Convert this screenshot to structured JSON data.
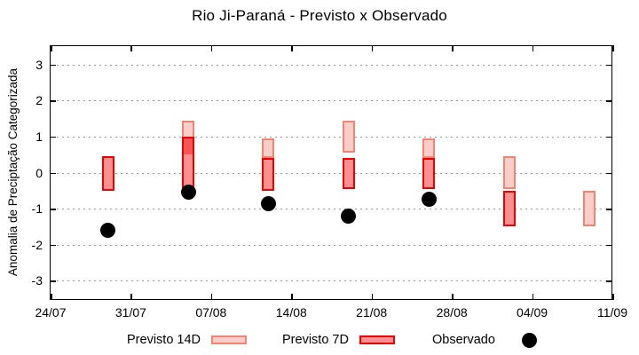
{
  "title": "Rio Ji-Paraná - Previsto x Observado",
  "axes": {
    "ylabel": "Anomalia de Preciptação Categorizada",
    "yticks": [
      3,
      2,
      1,
      0,
      -1,
      -2,
      -3
    ],
    "xtick_labels": [
      "24/07",
      "31/07",
      "07/08",
      "14/08",
      "21/08",
      "28/08",
      "04/09",
      "11/09"
    ],
    "xtick_days": [
      0,
      7,
      14,
      21,
      28,
      35,
      42,
      49
    ],
    "ylim": [
      -3.53,
      3.53
    ],
    "xlim_days": [
      0,
      49
    ],
    "grid": "dotted-horizontal"
  },
  "colors": {
    "previsto_14d_fill": "#facdc8",
    "previsto_14d_stroke": "#ef8575",
    "previsto_7d_fill": "#fc8f8f",
    "previsto_7d_stroke": "#e60000",
    "overlap_fill": "#f75454",
    "observado_fill": "#000000",
    "grid_color": "#979797"
  },
  "legend": {
    "items": [
      {
        "label": "Previsto 14D",
        "type": "box",
        "fill": "#facdc8",
        "stroke": "#ef8575"
      },
      {
        "label": "Previsto 7D",
        "type": "box",
        "fill": "#fc8f8f",
        "stroke": "#e60000"
      },
      {
        "label": "Observado",
        "type": "dot",
        "fill": "#000000"
      }
    ]
  },
  "chart_data": {
    "type": "bar",
    "title": "Rio Ji-Paraná - Previsto x Observado",
    "xlabel": "",
    "ylabel": "Anomalia de Preciptação Categorizada",
    "ylim": [
      -3.53,
      3.53
    ],
    "series_names": [
      "Previsto 14D",
      "Previsto 7D",
      "Observado"
    ],
    "groups": [
      {
        "x_day": 5,
        "previsto_14d": null,
        "previsto_7d": [
          0.45,
          -0.5
        ],
        "observado": -1.6
      },
      {
        "x_day": 12,
        "previsto_14d": [
          1.45,
          0.5
        ],
        "previsto_7d": [
          1.0,
          -0.45
        ],
        "observado": -0.55
      },
      {
        "x_day": 19,
        "previsto_14d": [
          0.95,
          0.4
        ],
        "previsto_7d": [
          0.4,
          -0.5
        ],
        "observado": -0.85
      },
      {
        "x_day": 26,
        "previsto_14d": [
          1.45,
          0.55
        ],
        "previsto_7d": [
          0.4,
          -0.45
        ],
        "observado": -1.2
      },
      {
        "x_day": 33,
        "previsto_14d": [
          0.95,
          0.4
        ],
        "previsto_7d": [
          0.4,
          -0.45
        ],
        "observado": -0.75
      },
      {
        "x_day": 40,
        "previsto_14d": [
          0.45,
          -0.45
        ],
        "previsto_7d": [
          -0.5,
          -1.5
        ],
        "observado": null
      },
      {
        "x_day": 47,
        "previsto_14d": [
          -0.5,
          -1.5
        ],
        "previsto_7d": null,
        "observado": null
      }
    ]
  }
}
